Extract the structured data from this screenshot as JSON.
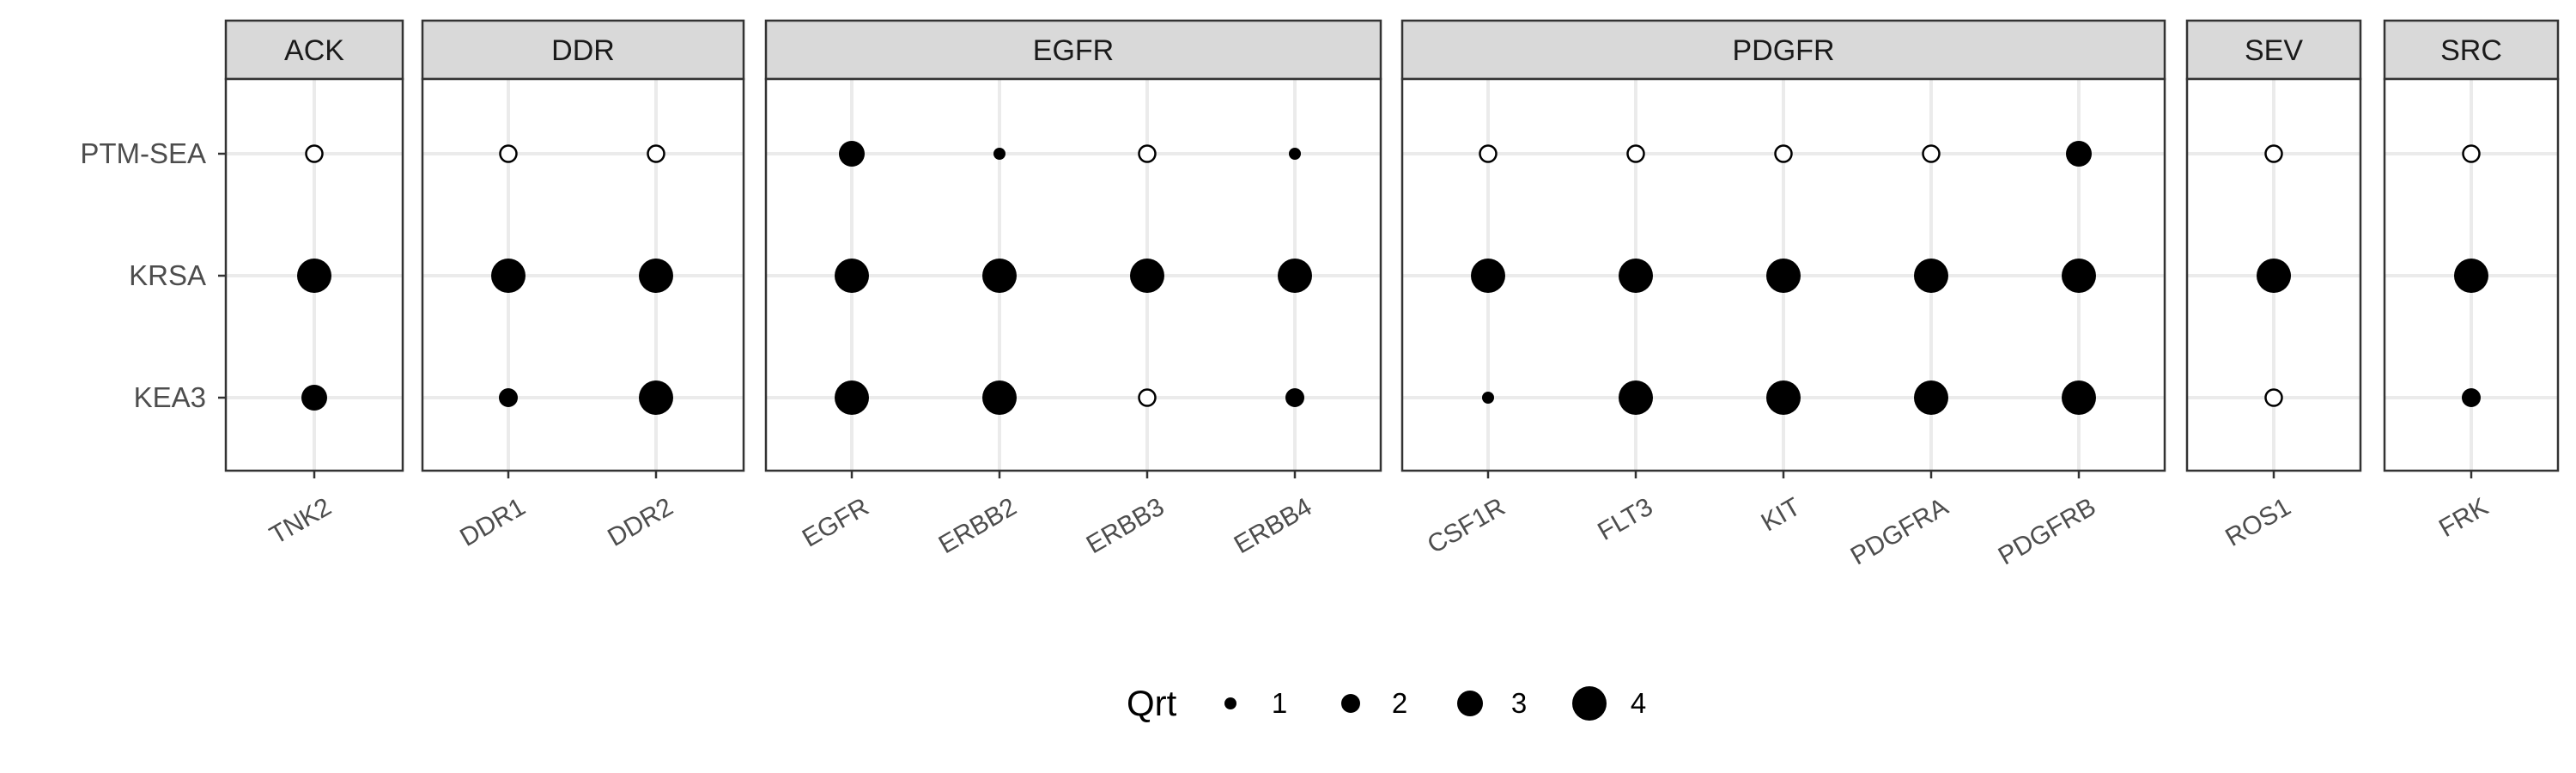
{
  "chart_data": {
    "type": "scatter",
    "subtype": "faceted dot plot",
    "y_categories": [
      "PTM-SEA",
      "KRSA",
      "KEA3"
    ],
    "facets": [
      {
        "family": "ACK",
        "kinases": [
          "TNK2"
        ],
        "Qrt": {
          "PTM-SEA": [
            0
          ],
          "KRSA": [
            4
          ],
          "KEA3": [
            3
          ]
        }
      },
      {
        "family": "DDR",
        "kinases": [
          "DDR1",
          "DDR2"
        ],
        "Qrt": {
          "PTM-SEA": [
            0,
            0
          ],
          "KRSA": [
            4,
            4
          ],
          "KEA3": [
            2,
            4
          ]
        }
      },
      {
        "family": "EGFR",
        "kinases": [
          "EGFR",
          "ERBB2",
          "ERBB3",
          "ERBB4"
        ],
        "Qrt": {
          "PTM-SEA": [
            3,
            1,
            0,
            1
          ],
          "KRSA": [
            4,
            4,
            4,
            4
          ],
          "KEA3": [
            4,
            4,
            0,
            2
          ]
        }
      },
      {
        "family": "PDGFR",
        "kinases": [
          "CSF1R",
          "FLT3",
          "KIT",
          "PDGFRA",
          "PDGFRB"
        ],
        "Qrt": {
          "PTM-SEA": [
            0,
            0,
            0,
            0,
            3
          ],
          "KRSA": [
            4,
            4,
            4,
            4,
            4
          ],
          "KEA3": [
            1,
            4,
            4,
            4,
            4
          ]
        }
      },
      {
        "family": "SEV",
        "kinases": [
          "ROS1"
        ],
        "Qrt": {
          "PTM-SEA": [
            0
          ],
          "KRSA": [
            4
          ],
          "KEA3": [
            0
          ]
        }
      },
      {
        "family": "SRC",
        "kinases": [
          "FRK"
        ],
        "Qrt": {
          "PTM-SEA": [
            0
          ],
          "KRSA": [
            4
          ],
          "KEA3": [
            2
          ]
        }
      }
    ],
    "zero_value_rendering": "open circle",
    "legend": {
      "title": "Qrt",
      "position": "bottom",
      "entries": [
        {
          "label": "1",
          "value": 1
        },
        {
          "label": "2",
          "value": 2
        },
        {
          "label": "3",
          "value": 3
        },
        {
          "label": "4",
          "value": 4
        }
      ]
    },
    "grid": true,
    "theme": "bw",
    "colors": {
      "point": "#000000",
      "strip": "#d9d9d9",
      "grid": "#ebebeb",
      "border": "#333333"
    }
  }
}
